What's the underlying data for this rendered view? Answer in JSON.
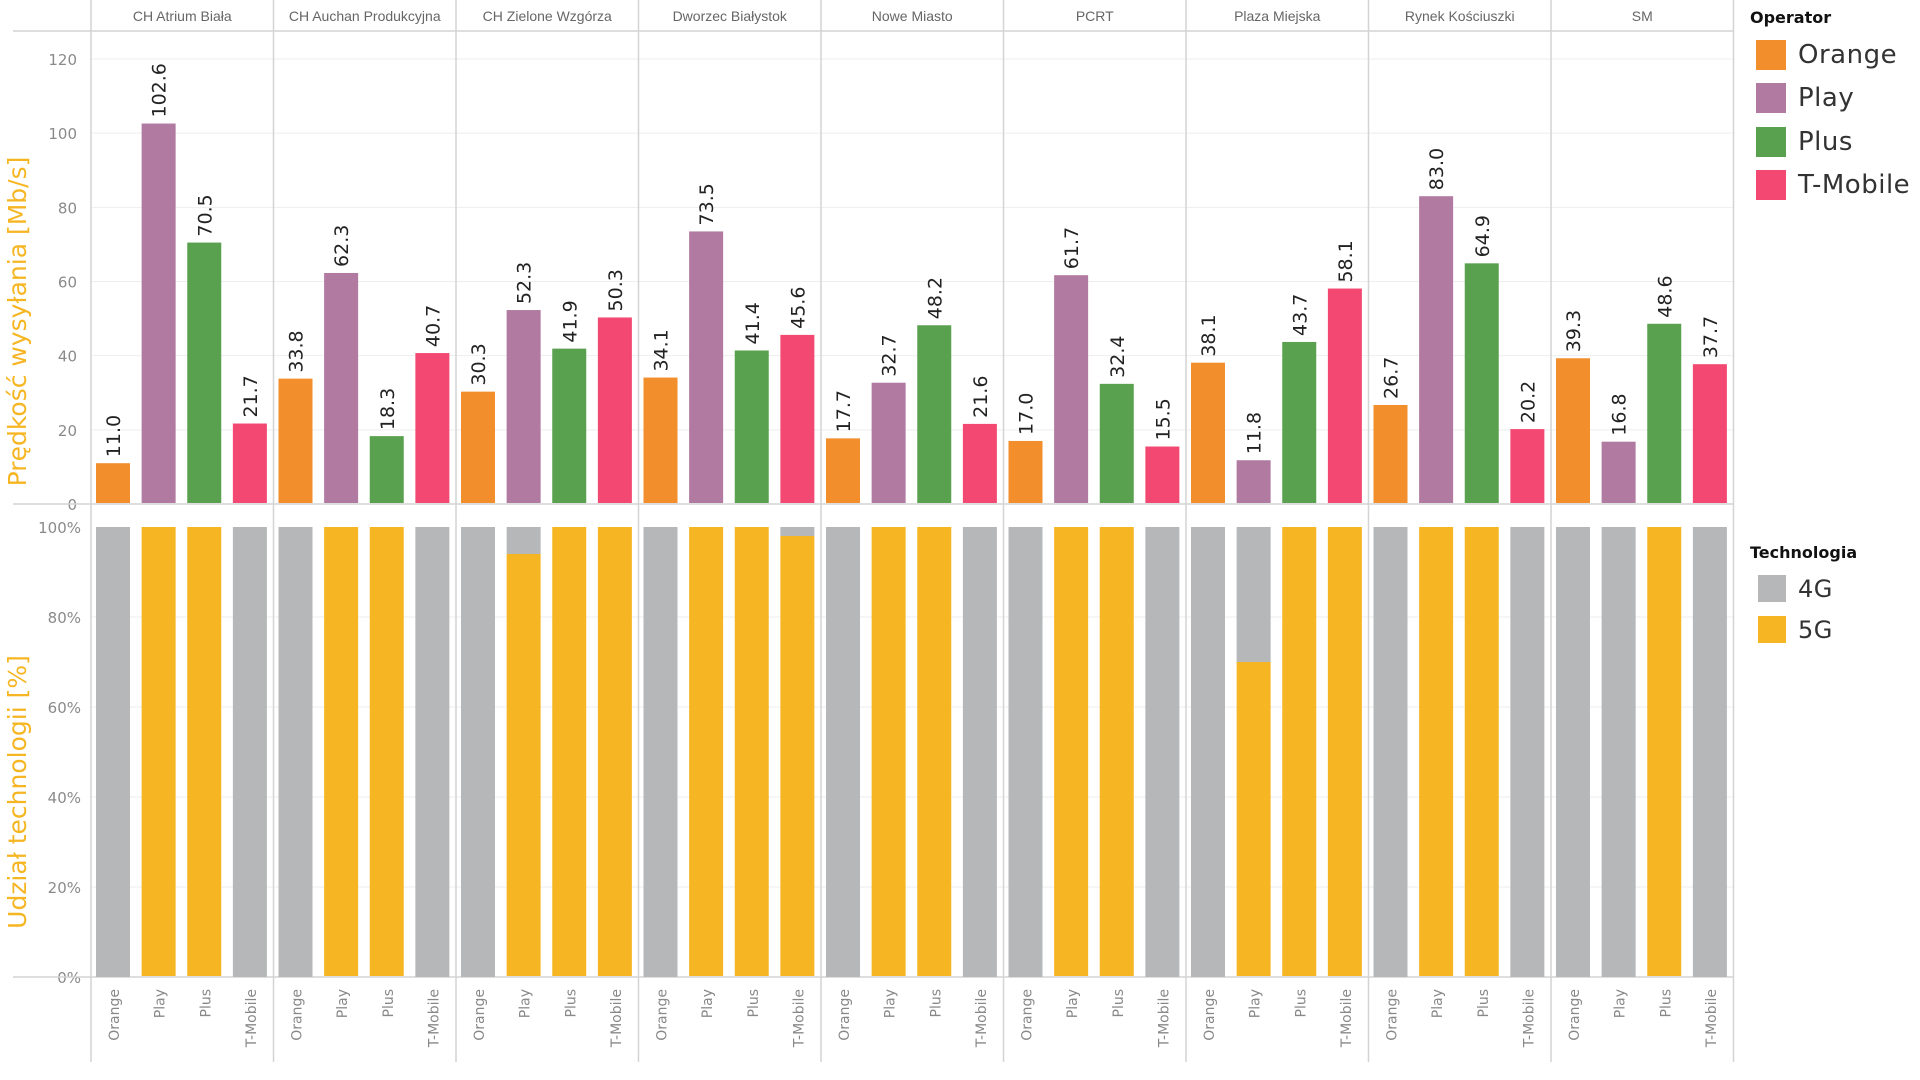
{
  "colors": {
    "Orange": "#f28e2b",
    "Play": "#b07aa1",
    "Plus": "#59a14f",
    "T-Mobile": "#f24872",
    "4G": "#b5b7b8",
    "5G": "#f6b623",
    "axis_title": "#f6b623",
    "tick": "#8a8a8a",
    "grid": "#eeeeee",
    "border": "#d4d4d4"
  },
  "legend_operator": {
    "title": "Operator",
    "items": [
      "Orange",
      "Play",
      "Plus",
      "T-Mobile"
    ]
  },
  "legend_technology": {
    "title": "Technologia",
    "items": [
      "4G",
      "5G"
    ]
  },
  "chart_data": [
    {
      "type": "bar",
      "title": "",
      "ylabel": "Prędkość wysyłania [Mb/s]",
      "xlabel": "",
      "ylim": [
        0,
        120
      ],
      "yticks": [
        0,
        20,
        40,
        60,
        80,
        100,
        120
      ],
      "ytick_labels": [
        "0",
        "20",
        "40",
        "60",
        "80",
        "100",
        "120"
      ],
      "grid": true,
      "legend": "right",
      "facets": [
        "CH Atrium Biała",
        "CH Auchan Produkcyjna",
        "CH Zielone Wzgórza",
        "Dworzec Białystok",
        "Nowe Miasto",
        "PCRT",
        "Plaza Miejska",
        "Rynek Kościuszki",
        "SM"
      ],
      "categories": [
        "Orange",
        "Play",
        "Plus",
        "T-Mobile"
      ],
      "values": [
        [
          11.0,
          102.6,
          70.5,
          21.7
        ],
        [
          33.8,
          62.3,
          18.3,
          40.7
        ],
        [
          30.3,
          52.3,
          41.9,
          50.3
        ],
        [
          34.1,
          73.5,
          41.4,
          45.6
        ],
        [
          17.7,
          32.7,
          48.2,
          21.6
        ],
        [
          17.0,
          61.7,
          32.4,
          15.5
        ],
        [
          38.1,
          11.8,
          43.7,
          58.1
        ],
        [
          26.7,
          83.0,
          64.9,
          20.2
        ],
        [
          39.3,
          16.8,
          48.6,
          37.7
        ]
      ],
      "value_labels": [
        [
          "11.0",
          "102.6",
          "70.5",
          "21.7"
        ],
        [
          "33.8",
          "62.3",
          "18.3",
          "40.7"
        ],
        [
          "30.3",
          "52.3",
          "41.9",
          "50.3"
        ],
        [
          "34.1",
          "73.5",
          "41.4",
          "45.6"
        ],
        [
          "17.7",
          "32.7",
          "48.2",
          "21.6"
        ],
        [
          "17.0",
          "61.7",
          "32.4",
          "15.5"
        ],
        [
          "38.1",
          "11.8",
          "43.7",
          "58.1"
        ],
        [
          "26.7",
          "83.0",
          "64.9",
          "20.2"
        ],
        [
          "39.3",
          "16.8",
          "48.6",
          "37.7"
        ]
      ]
    },
    {
      "type": "bar",
      "stacked": true,
      "title": "",
      "ylabel": "Udział technologii [%]",
      "xlabel": "",
      "ylim": [
        0,
        100
      ],
      "yticks": [
        0,
        20,
        40,
        60,
        80,
        100
      ],
      "ytick_labels": [
        "0%",
        "20%",
        "40%",
        "60%",
        "80%",
        "100%"
      ],
      "grid": true,
      "legend": "right",
      "facets": [
        "CH Atrium Biała",
        "CH Auchan Produkcyjna",
        "CH Zielone Wzgórza",
        "Dworzec Białystok",
        "Nowe Miasto",
        "PCRT",
        "Plaza Miejska",
        "Rynek Kościuszki",
        "SM"
      ],
      "categories": [
        "Orange",
        "Play",
        "Plus",
        "T-Mobile"
      ],
      "series": [
        {
          "name": "5G",
          "values": [
            [
              0,
              100,
              100,
              0
            ],
            [
              0,
              100,
              100,
              0
            ],
            [
              0,
              94,
              100,
              100
            ],
            [
              0,
              100,
              100,
              98
            ],
            [
              0,
              100,
              100,
              0
            ],
            [
              0,
              100,
              100,
              0
            ],
            [
              0,
              70,
              100,
              100
            ],
            [
              0,
              100,
              100,
              0
            ],
            [
              0,
              0,
              100,
              0
            ]
          ]
        },
        {
          "name": "4G",
          "values": [
            [
              100,
              0,
              0,
              100
            ],
            [
              100,
              0,
              0,
              100
            ],
            [
              100,
              6,
              0,
              0
            ],
            [
              100,
              0,
              0,
              2
            ],
            [
              100,
              0,
              0,
              100
            ],
            [
              100,
              0,
              0,
              100
            ],
            [
              100,
              30,
              0,
              0
            ],
            [
              100,
              0,
              0,
              100
            ],
            [
              100,
              100,
              0,
              100
            ]
          ]
        }
      ]
    }
  ]
}
